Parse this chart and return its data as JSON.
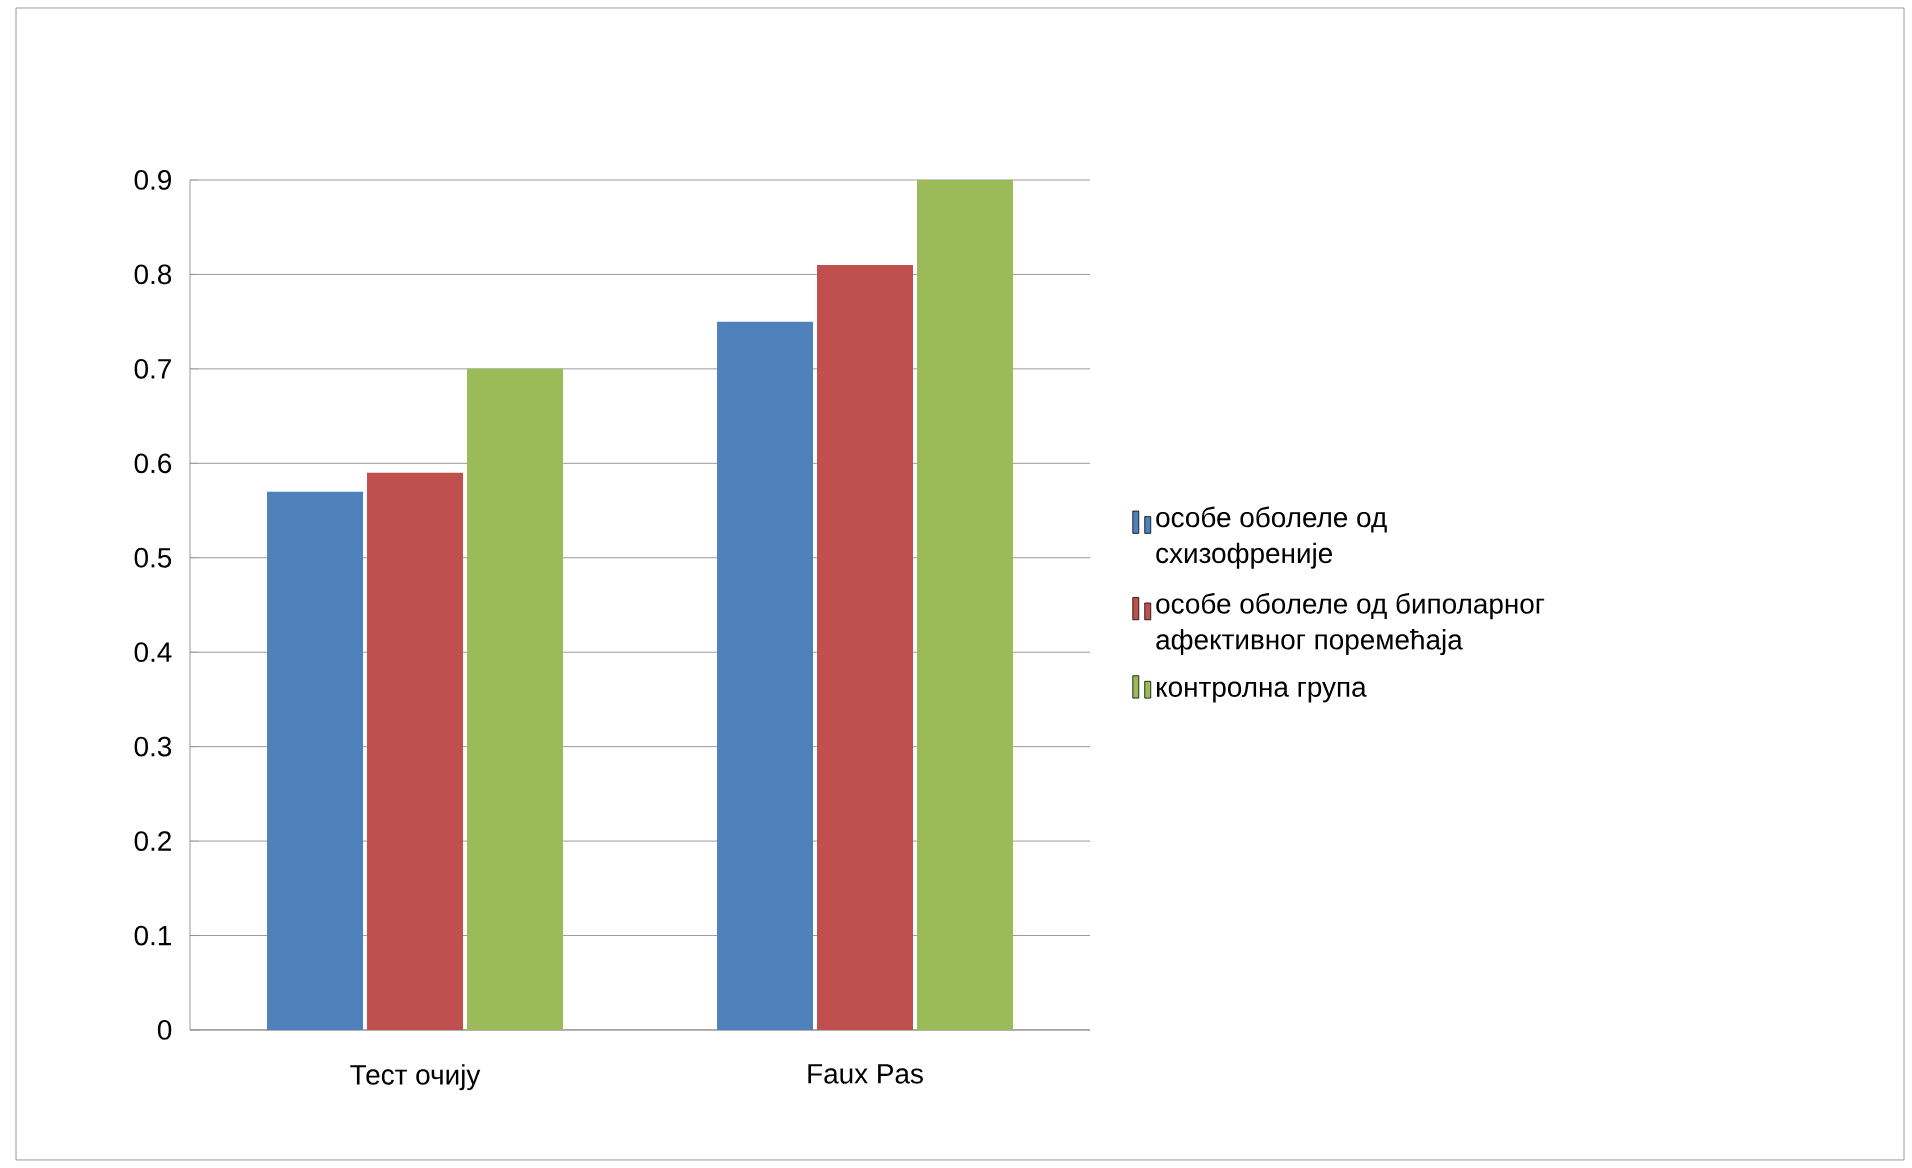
{
  "chart_data": {
    "type": "bar",
    "categories": [
      "Тест очију",
      "Faux Pas"
    ],
    "series": [
      {
        "name": "особе оболеле од схизофреније",
        "color": "#4f81bd",
        "values": [
          0.57,
          0.75
        ]
      },
      {
        "name": "особе оболеле од биполарног афективног поремећаја",
        "color": "#c0504d",
        "values": [
          0.59,
          0.81
        ]
      },
      {
        "name": "контролна група",
        "color": "#9bbb59",
        "values": [
          0.7,
          0.9
        ]
      }
    ],
    "ylim": [
      0,
      0.9
    ],
    "yticks": [
      0,
      0.1,
      0.2,
      0.3,
      0.4,
      0.5,
      0.6,
      0.7,
      0.8,
      0.9
    ],
    "grid": "y",
    "legend": "right"
  }
}
